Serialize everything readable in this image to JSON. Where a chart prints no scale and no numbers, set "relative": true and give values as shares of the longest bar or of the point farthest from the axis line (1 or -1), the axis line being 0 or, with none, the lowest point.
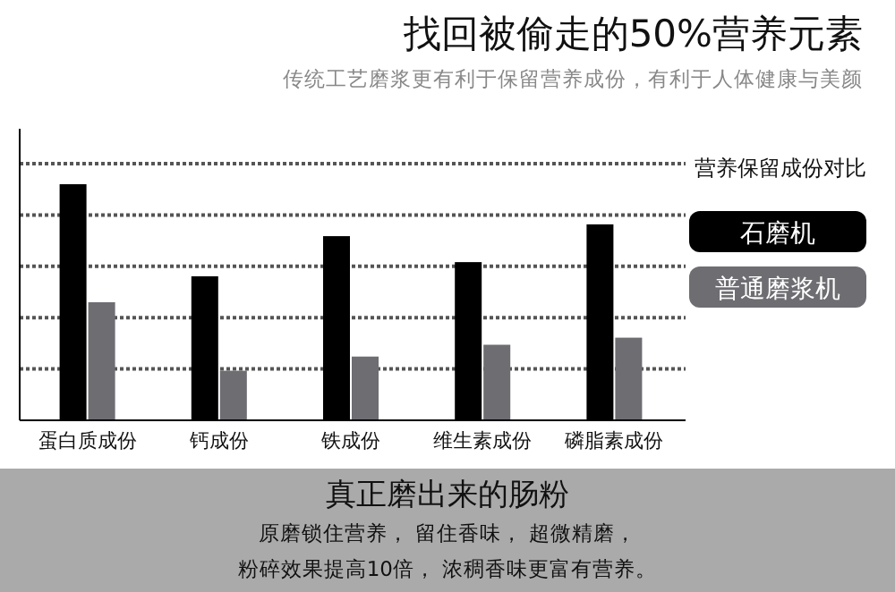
{
  "chart_data": {
    "type": "bar",
    "title": "找回被偷走的50%营养元素",
    "subtitle": "传统工艺磨浆更有利于保留营养成份，有利于人体健康与美颜",
    "categories": [
      "蛋白质成份",
      "钙成份",
      "铁成份",
      "维生素成份",
      "磷脂素成份"
    ],
    "relative": true,
    "grid": "y",
    "legend": "right",
    "legend_title": "营养保留成份对比",
    "series": [
      {
        "name": "石磨机",
        "color": "#000000",
        "values": [
          1,
          0.61,
          0.78,
          0.67,
          0.83
        ]
      },
      {
        "name": "普通磨浆机",
        "color": "#6d6d72",
        "values": [
          0.5,
          0.21,
          0.27,
          0.32,
          0.35
        ]
      }
    ],
    "annotations": [
      "真正磨出来的肠粉",
      "原磨锁住营养， 留住香味， 超微精磨，",
      "粉碎效果提高10倍， 浓稠香味更富有营养。"
    ]
  }
}
